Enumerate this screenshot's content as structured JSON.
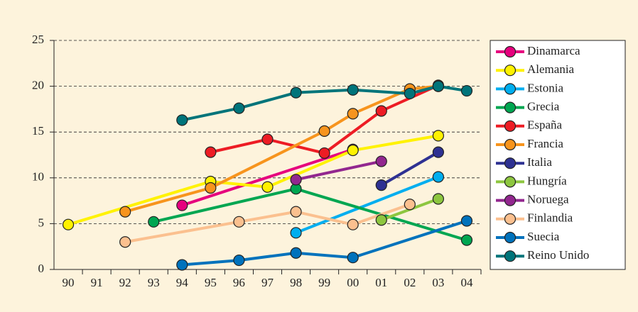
{
  "chart_data": {
    "type": "line",
    "categories": [
      "90",
      "91",
      "92",
      "93",
      "94",
      "95",
      "96",
      "97",
      "98",
      "99",
      "00",
      "01",
      "02",
      "03",
      "04"
    ],
    "ylim": [
      0,
      25
    ],
    "yticks": [
      0,
      5,
      10,
      15,
      20,
      25
    ],
    "grid": true,
    "legend": "right",
    "series": [
      {
        "name": "Dinamarca",
        "color": "#e6007e",
        "x": [
          "94",
          "00"
        ],
        "values": [
          7.0,
          13.1
        ]
      },
      {
        "name": "Alemania",
        "color": "#fff200",
        "x": [
          "90",
          "95",
          "97",
          "00",
          "03"
        ],
        "values": [
          4.9,
          9.6,
          9.0,
          13.0,
          14.6
        ]
      },
      {
        "name": "Estonia",
        "color": "#00aeef",
        "x": [
          "98",
          "03"
        ],
        "values": [
          4.0,
          10.1
        ]
      },
      {
        "name": "Grecia",
        "color": "#00a651",
        "x": [
          "93",
          "98",
          "04"
        ],
        "values": [
          5.2,
          8.8,
          3.2
        ]
      },
      {
        "name": "España",
        "color": "#ed1c24",
        "x": [
          "95",
          "97",
          "99",
          "01",
          "03"
        ],
        "values": [
          12.8,
          14.2,
          12.7,
          17.3,
          20.1
        ]
      },
      {
        "name": "Francia",
        "color": "#f7941d",
        "x": [
          "92",
          "95",
          "99",
          "00",
          "02",
          "03"
        ],
        "values": [
          6.3,
          8.9,
          15.1,
          17.0,
          19.7,
          20.0
        ]
      },
      {
        "name": "Italia",
        "color": "#2e3192",
        "x": [
          "01",
          "03"
        ],
        "values": [
          9.2,
          12.8
        ]
      },
      {
        "name": "Hungría",
        "color": "#8dc63f",
        "x": [
          "01",
          "03"
        ],
        "values": [
          5.4,
          7.7
        ]
      },
      {
        "name": "Noruega",
        "color": "#92278f",
        "x": [
          "98",
          "01"
        ],
        "values": [
          9.8,
          11.8
        ]
      },
      {
        "name": "Finlandia",
        "color": "#fbc08f",
        "x": [
          "92",
          "96",
          "98",
          "00",
          "02"
        ],
        "values": [
          3.0,
          5.2,
          6.3,
          4.9,
          7.1
        ]
      },
      {
        "name": "Suecia",
        "color": "#0072bc",
        "x": [
          "94",
          "96",
          "98",
          "00",
          "04"
        ],
        "values": [
          0.5,
          1.0,
          1.8,
          1.3,
          5.3
        ]
      },
      {
        "name": "Reino Unido",
        "color": "#00747a",
        "x": [
          "94",
          "96",
          "98",
          "00",
          "02",
          "03",
          "04"
        ],
        "values": [
          16.3,
          17.6,
          19.3,
          19.6,
          19.2,
          20.0,
          19.5
        ]
      }
    ]
  }
}
